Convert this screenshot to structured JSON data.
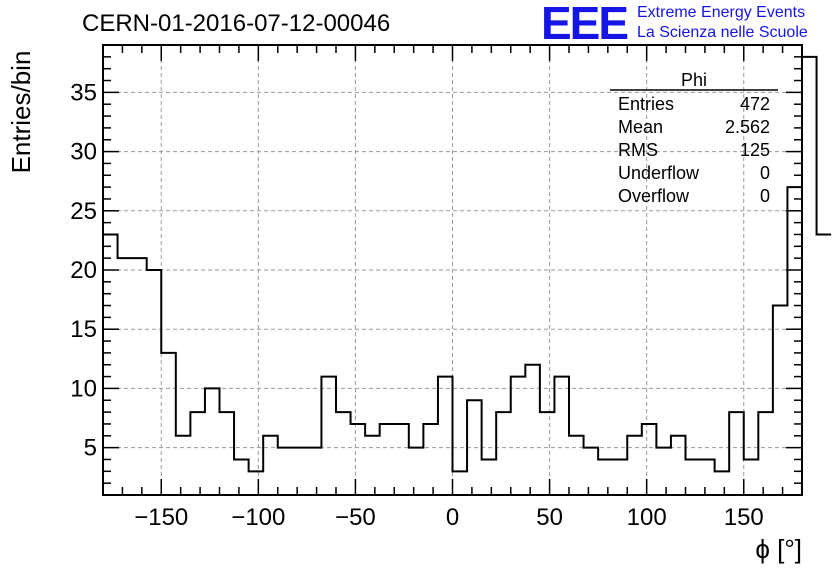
{
  "header": {
    "run_title": "CERN-01-2016-07-12-00046",
    "logo_mark": "EEE",
    "logo_line1": "Extreme Energy Events",
    "logo_line2": "La Scienza nelle Scuole"
  },
  "stats_box": {
    "name": "Phi",
    "rows": [
      {
        "label": "Entries",
        "value": "472"
      },
      {
        "label": "Mean",
        "value": "2.562"
      },
      {
        "label": "RMS",
        "value": "125"
      },
      {
        "label": "Underflow",
        "value": "0"
      },
      {
        "label": "Overflow",
        "value": "0"
      }
    ]
  },
  "chart_data": {
    "type": "bar",
    "style": "step-histogram",
    "xlabel": "ϕ [°]",
    "ylabel": "Entries/bin",
    "xlim": [
      -180,
      180
    ],
    "ylim": [
      1,
      39
    ],
    "grid": true,
    "x_ticks": [
      -150,
      -100,
      -50,
      0,
      50,
      100,
      150
    ],
    "x_tick_labels": [
      "−150",
      "−100",
      "−50",
      "0",
      "50",
      "100",
      "150"
    ],
    "y_ticks": [
      5,
      10,
      15,
      20,
      25,
      30,
      35
    ],
    "y_tick_labels": [
      "5",
      "10",
      "15",
      "20",
      "25",
      "30",
      "35"
    ],
    "bin_width": 7.5,
    "bin_edges_start": -180,
    "values": [
      23,
      21,
      21,
      20,
      13,
      6,
      8,
      10,
      8,
      4,
      3,
      6,
      5,
      5,
      5,
      11,
      8,
      7,
      6,
      7,
      7,
      5,
      7,
      11,
      3,
      9,
      4,
      8,
      11,
      12,
      8,
      11,
      6,
      5,
      4,
      4,
      6,
      7,
      5,
      6,
      4,
      4,
      3,
      8,
      4,
      8,
      17,
      27,
      38,
      23
    ],
    "line_color": "#000000"
  }
}
